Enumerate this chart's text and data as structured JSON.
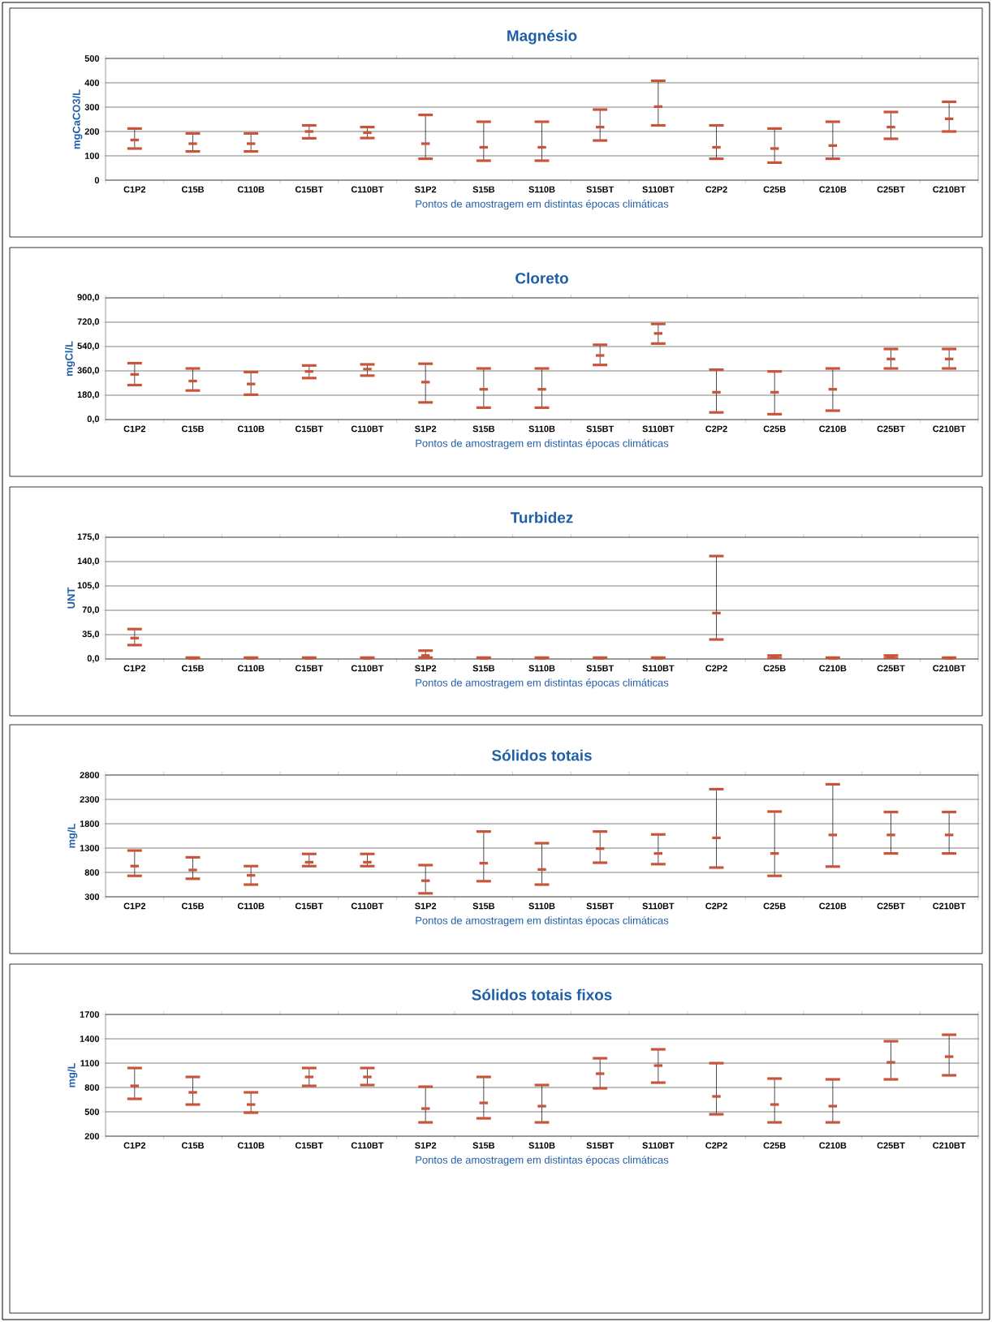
{
  "chart_data": [
    {
      "type": "scatter",
      "title": "Magnésio",
      "xlabel": "Pontos de amostragem em distintas épocas climáticas",
      "ylabel": "mgCaCO3/L",
      "color": "#c8553a",
      "grid": "y",
      "categories": [
        "C1P2",
        "C15B",
        "C110B",
        "C15BT",
        "C110BT",
        "S1P2",
        "S15B",
        "S110B",
        "S15BT",
        "S110BT",
        "C2P2",
        "C25B",
        "C210B",
        "C25BT",
        "C210BT"
      ],
      "values": [
        165,
        150,
        150,
        200,
        195,
        150,
        135,
        135,
        218,
        302,
        135,
        130,
        142,
        218,
        252
      ],
      "errors": [
        [
          130,
          212
        ],
        [
          118,
          192
        ],
        [
          118,
          192
        ],
        [
          172,
          225
        ],
        [
          173,
          218
        ],
        [
          88,
          268
        ],
        [
          80,
          240
        ],
        [
          80,
          240
        ],
        [
          163,
          290
        ],
        [
          225,
          408
        ],
        [
          88,
          225
        ],
        [
          72,
          212
        ],
        [
          88,
          240
        ],
        [
          170,
          280
        ],
        [
          200,
          322
        ]
      ],
      "ylim": [
        0,
        500
      ],
      "yticks": [
        0,
        100,
        200,
        300,
        400,
        500
      ]
    },
    {
      "type": "scatter",
      "title": "Cloreto",
      "xlabel": "Pontos de amostragem em distintas épocas climáticas",
      "ylabel": "mgCl/L",
      "color": "#c8553a",
      "grid": "y",
      "categories": [
        "C1P2",
        "C15B",
        "C110B",
        "C15BT",
        "C110BT",
        "S1P2",
        "S15B",
        "S110B",
        "S15BT",
        "S110BT",
        "C2P2",
        "C25B",
        "C210B",
        "C25BT",
        "C210BT"
      ],
      "values": [
        334,
        285,
        263,
        356,
        373,
        277,
        224,
        224,
        474,
        637,
        202,
        202,
        224,
        448,
        448
      ],
      "errors": [
        [
          255,
          417
        ],
        [
          215,
          378
        ],
        [
          184,
          351
        ],
        [
          307,
          400
        ],
        [
          325,
          408
        ],
        [
          127,
          413
        ],
        [
          88,
          378
        ],
        [
          88,
          378
        ],
        [
          404,
          553
        ],
        [
          562,
          707
        ],
        [
          53,
          369
        ],
        [
          40,
          356
        ],
        [
          66,
          378
        ],
        [
          378,
          522
        ],
        [
          378,
          522
        ]
      ],
      "ylim": [
        0,
        900
      ],
      "yticks": [
        {
          "value": 0,
          "label": "0,0"
        },
        {
          "value": 180,
          "label": "180,0"
        },
        {
          "value": 360,
          "label": "360,0"
        },
        {
          "value": 540,
          "label": "540,0"
        },
        {
          "value": 720,
          "label": "720,0"
        },
        {
          "value": 900,
          "label": "900,0"
        }
      ]
    },
    {
      "type": "scatter",
      "title": "Turbidez",
      "xlabel": "Pontos de amostragem em distintas épocas climáticas",
      "ylabel": "UNT",
      "color": "#c8553a",
      "grid": "y",
      "categories": [
        "C1P2",
        "C15B",
        "C110B",
        "C15BT",
        "C110BT",
        "S1P2",
        "S15B",
        "S110B",
        "S15BT",
        "S110BT",
        "C2P2",
        "C25B",
        "C210B",
        "C25BT",
        "C210BT"
      ],
      "values": [
        30,
        1,
        1,
        1,
        1,
        5,
        1,
        1,
        1,
        1,
        66,
        3,
        1,
        3,
        1
      ],
      "errors": [
        [
          20,
          43
        ],
        [
          0,
          2
        ],
        [
          0,
          2
        ],
        [
          0,
          2
        ],
        [
          0,
          2
        ],
        [
          2,
          12
        ],
        [
          0,
          2
        ],
        [
          0,
          2
        ],
        [
          0,
          2
        ],
        [
          0,
          2
        ],
        [
          28,
          148
        ],
        [
          1,
          5
        ],
        [
          0,
          2
        ],
        [
          1,
          5
        ],
        [
          0,
          2
        ]
      ],
      "ylim": [
        0,
        175
      ],
      "yticks": [
        {
          "value": 0,
          "label": "0,0"
        },
        {
          "value": 35,
          "label": "35,0"
        },
        {
          "value": 70,
          "label": "70,0"
        },
        {
          "value": 105,
          "label": "105,0"
        },
        {
          "value": 140,
          "label": "140,0"
        },
        {
          "value": 175,
          "label": "175,0"
        }
      ]
    },
    {
      "type": "scatter",
      "title": "Sólidos totais",
      "xlabel": "Pontos de amostragem em distintas épocas climáticas",
      "ylabel": "mg/L",
      "color": "#c8553a",
      "grid": "y",
      "categories": [
        "C1P2",
        "C15B",
        "C110B",
        "C15BT",
        "C110BT",
        "S1P2",
        "S15B",
        "S110B",
        "S15BT",
        "S110BT",
        "C2P2",
        "C25B",
        "C210B",
        "C25BT",
        "C210BT"
      ],
      "values": [
        930,
        850,
        740,
        1010,
        1010,
        630,
        990,
        860,
        1290,
        1190,
        1510,
        1190,
        1570,
        1570,
        1570
      ],
      "errors": [
        [
          730,
          1250
        ],
        [
          670,
          1110
        ],
        [
          550,
          930
        ],
        [
          930,
          1180
        ],
        [
          930,
          1180
        ],
        [
          370,
          950
        ],
        [
          620,
          1640
        ],
        [
          550,
          1400
        ],
        [
          1000,
          1640
        ],
        [
          970,
          1580
        ],
        [
          900,
          2510
        ],
        [
          730,
          2050
        ],
        [
          920,
          2610
        ],
        [
          1190,
          2040
        ],
        [
          1190,
          2040
        ]
      ],
      "ylim": [
        300,
        2800
      ],
      "yticks": [
        300,
        800,
        1300,
        1800,
        2300,
        2800
      ]
    },
    {
      "type": "scatter",
      "title": "Sólidos totais fixos",
      "xlabel": "Pontos de amostragem em distintas épocas climáticas",
      "ylabel": "mg/L",
      "color": "#c8553a",
      "grid": "y",
      "categories": [
        "C1P2",
        "C15B",
        "C110B",
        "C15BT",
        "C110BT",
        "S1P2",
        "S15B",
        "S110B",
        "S15BT",
        "S110BT",
        "C2P2",
        "C25B",
        "C210B",
        "C25BT",
        "C210BT"
      ],
      "values": [
        820,
        740,
        590,
        930,
        930,
        540,
        610,
        570,
        970,
        1070,
        690,
        590,
        570,
        1110,
        1180
      ],
      "errors": [
        [
          660,
          1040
        ],
        [
          590,
          930
        ],
        [
          490,
          740
        ],
        [
          820,
          1040
        ],
        [
          830,
          1040
        ],
        [
          370,
          810
        ],
        [
          420,
          930
        ],
        [
          370,
          830
        ],
        [
          790,
          1160
        ],
        [
          860,
          1270
        ],
        [
          470,
          1100
        ],
        [
          370,
          910
        ],
        [
          370,
          900
        ],
        [
          900,
          1370
        ],
        [
          950,
          1450
        ]
      ],
      "ylim": [
        200,
        1700
      ],
      "yticks": [
        200,
        500,
        800,
        1100,
        1400,
        1700
      ]
    }
  ]
}
